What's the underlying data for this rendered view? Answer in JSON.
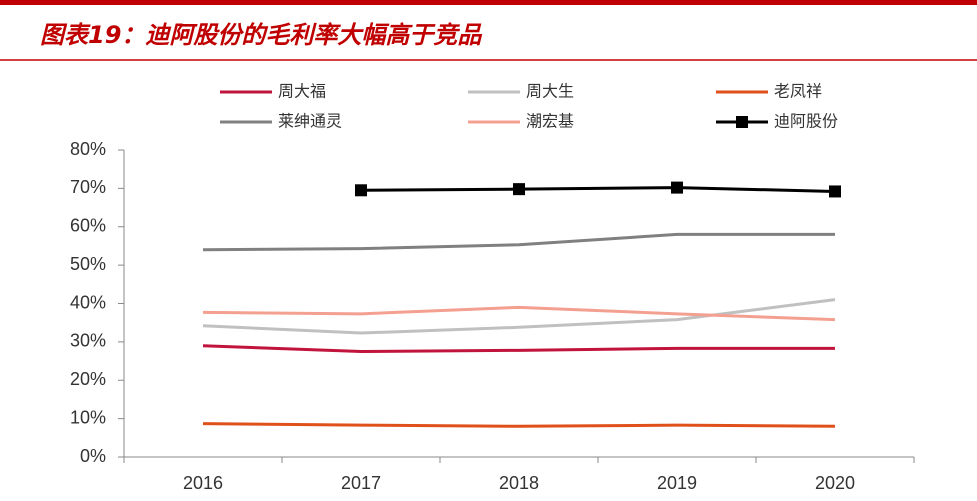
{
  "chart_data": {
    "type": "line",
    "title": "图表19：迪阿股份的毛利率大幅高于竞品",
    "categories": [
      "2016",
      "2017",
      "2018",
      "2019",
      "2020"
    ],
    "series": [
      {
        "name": "周大福",
        "color": "#c0143c",
        "values": [
          29,
          27.5,
          27.8,
          28.3,
          28.3
        ]
      },
      {
        "name": "周大生",
        "color": "#c0c0c0",
        "values": [
          34.2,
          32.3,
          33.8,
          35.8,
          41
        ]
      },
      {
        "name": "老凤祥",
        "color": "#e0501a",
        "values": [
          8.7,
          8.3,
          8,
          8.3,
          8
        ]
      },
      {
        "name": "莱绅通灵",
        "color": "#808080",
        "values": [
          54,
          54.3,
          55.3,
          58,
          58
        ]
      },
      {
        "name": "潮宏基",
        "color": "#f4a090",
        "values": [
          37.7,
          37.3,
          39,
          37.3,
          35.8
        ]
      },
      {
        "name": "迪阿股份",
        "color": "#000000",
        "values": [
          null,
          69.5,
          69.8,
          70.2,
          69.2
        ],
        "markers": true
      }
    ],
    "ylim": [
      0,
      80
    ],
    "yticks": [
      {
        "value": 0,
        "label": "0%"
      },
      {
        "value": 10,
        "label": "10%"
      },
      {
        "value": 20,
        "label": "20%"
      },
      {
        "value": 30,
        "label": "30%"
      },
      {
        "value": 40,
        "label": "40%"
      },
      {
        "value": 50,
        "label": "50%"
      },
      {
        "value": 60,
        "label": "60%"
      },
      {
        "value": 70,
        "label": "70%"
      },
      {
        "value": 80,
        "label": "80%"
      }
    ]
  }
}
